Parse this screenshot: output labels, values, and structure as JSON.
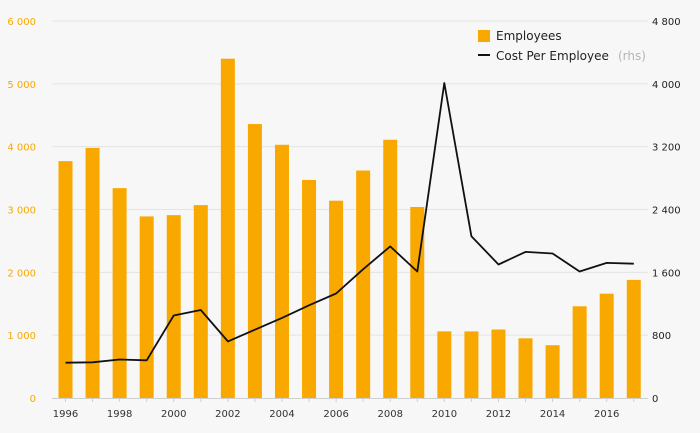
{
  "chart_data": {
    "type": "bar+line",
    "categories": [
      1996,
      1997,
      1998,
      1999,
      2000,
      2001,
      2002,
      2003,
      2004,
      2005,
      2006,
      2007,
      2008,
      2009,
      2010,
      2011,
      2012,
      2013,
      2014,
      2015,
      2016,
      2017
    ],
    "x_tick_labels": [
      "1996",
      "1998",
      "2000",
      "2002",
      "2004",
      "2006",
      "2008",
      "2010",
      "2012",
      "2014",
      "2016"
    ],
    "series": [
      {
        "name": "Employees",
        "type": "bar",
        "axis": "left",
        "color": "#f9a800",
        "values": [
          3770,
          3980,
          3340,
          2890,
          2910,
          3070,
          5400,
          4360,
          4030,
          3470,
          3140,
          3620,
          4110,
          3040,
          1060,
          1060,
          1090,
          950,
          840,
          1460,
          1660,
          1880
        ]
      },
      {
        "name": "Cost Per Employee",
        "legend_suffix": "(rhs)",
        "type": "line",
        "axis": "right",
        "color": "#111111",
        "values": [
          450,
          455,
          490,
          480,
          1050,
          1120,
          720,
          870,
          1020,
          1180,
          1330,
          1640,
          1930,
          1610,
          4010,
          2060,
          1700,
          1860,
          1840,
          1610,
          1720,
          1710
        ]
      }
    ],
    "y_left": {
      "min": 0,
      "max": 6000,
      "ticks": [
        "0",
        "1 000",
        "2 000",
        "3 000",
        "4 000",
        "5 000",
        "6 000"
      ],
      "tick_color": "#f9a800"
    },
    "y_right": {
      "min": 0,
      "max": 4800,
      "ticks": [
        "0",
        "800",
        "1 600",
        "2 400",
        "3 200",
        "4 000",
        "4 800"
      ],
      "tick_color": "#222222"
    },
    "grid": true,
    "legend_position": "top-right",
    "background": "#f7f7f7"
  }
}
